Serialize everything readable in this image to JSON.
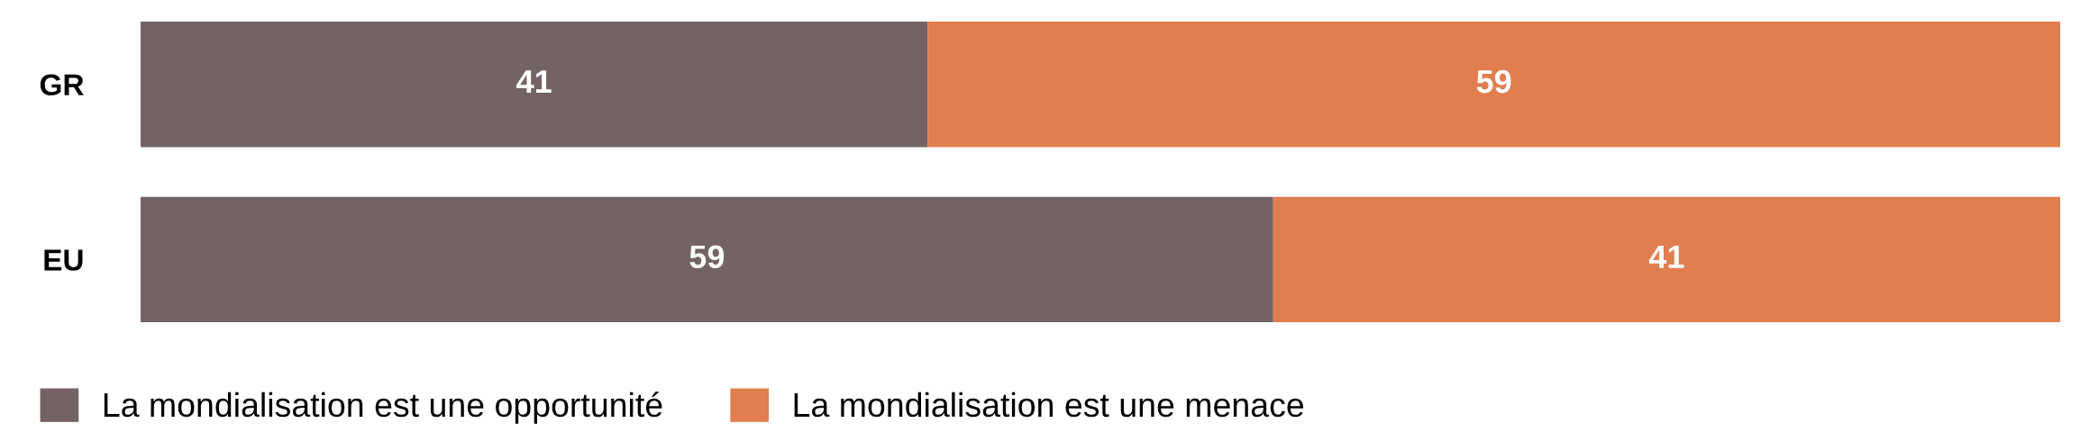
{
  "chart_data": {
    "type": "bar",
    "orientation": "horizontal",
    "stacked": true,
    "categories": [
      "GR",
      "EU"
    ],
    "series": [
      {
        "name": "La mondialisation est une opportunité",
        "color": "#736365",
        "values": [
          41,
          59
        ]
      },
      {
        "name": "La mondialisation est une menace",
        "color": "#e07e4f",
        "values": [
          59,
          41
        ]
      }
    ],
    "xlim": [
      0,
      100
    ],
    "data_labels": true,
    "legend": "bottom left",
    "tick_labels": "y",
    "grid": false
  }
}
